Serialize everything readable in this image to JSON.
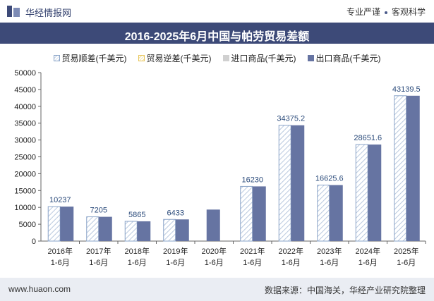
{
  "header": {
    "brand": "华经情报网",
    "slogan_left": "专业严谨",
    "slogan_right": "客观科学"
  },
  "colors": {
    "title_bg": "#3d4a78",
    "export_bar": "#6674a2",
    "hatch_stroke": "#8aa4c8",
    "footer_bg": "#eaedf3"
  },
  "footer": {
    "website": "www.huaon.com",
    "source": "数据来源：中国海关，华经产业研究院整理"
  },
  "chart_data": {
    "type": "bar",
    "title": "2016-2025年6月中国与帕劳贸易差额",
    "categories": [
      "2016年\n1-6月",
      "2017年\n1-6月",
      "2018年\n1-6月",
      "2019年\n1-6月",
      "2020年\n1-6月",
      "2021年\n1-6月",
      "2022年\n1-6月",
      "2023年\n1-6月",
      "2024年\n1-6月",
      "2025年\n1-6月"
    ],
    "legend": [
      {
        "name": "贸易顺差(千美元)",
        "icon": "hatch-blue"
      },
      {
        "name": "贸易逆差(千美元)",
        "icon": "hatch-yellow"
      },
      {
        "name": "进口商品(千美元)",
        "icon": "solid-gray"
      },
      {
        "name": "出口商品(千美元)",
        "icon": "solid-navy"
      }
    ],
    "series": [
      {
        "name": "贸易顺差(千美元)",
        "values": [
          10237,
          7205,
          5865,
          6433,
          null,
          16230,
          34375.2,
          16625.6,
          28651.6,
          43139.5
        ]
      },
      {
        "name": "贸易逆差(千美元)",
        "values": [
          null,
          null,
          null,
          null,
          null,
          null,
          null,
          null,
          null,
          null
        ]
      },
      {
        "name": "进口商品(千美元)",
        "values": [
          null,
          null,
          null,
          null,
          null,
          null,
          null,
          null,
          null,
          null
        ]
      },
      {
        "name": "出口商品(千美元)",
        "values": [
          10237,
          7205,
          5865,
          6433,
          9350,
          16230,
          34375.2,
          16625.6,
          28651.6,
          43139.5
        ]
      }
    ],
    "data_labels": [
      "10237",
      "7205",
      "5865",
      "6433",
      "",
      "16230",
      "34375.2",
      "16625.6",
      "28651.6",
      "43139.5"
    ],
    "yticks": [
      "0",
      "5000",
      "10000",
      "15000",
      "20000",
      "25000",
      "30000",
      "35000",
      "40000",
      "45000",
      "50000"
    ],
    "ylim": [
      0,
      50000
    ],
    "grid": false
  }
}
